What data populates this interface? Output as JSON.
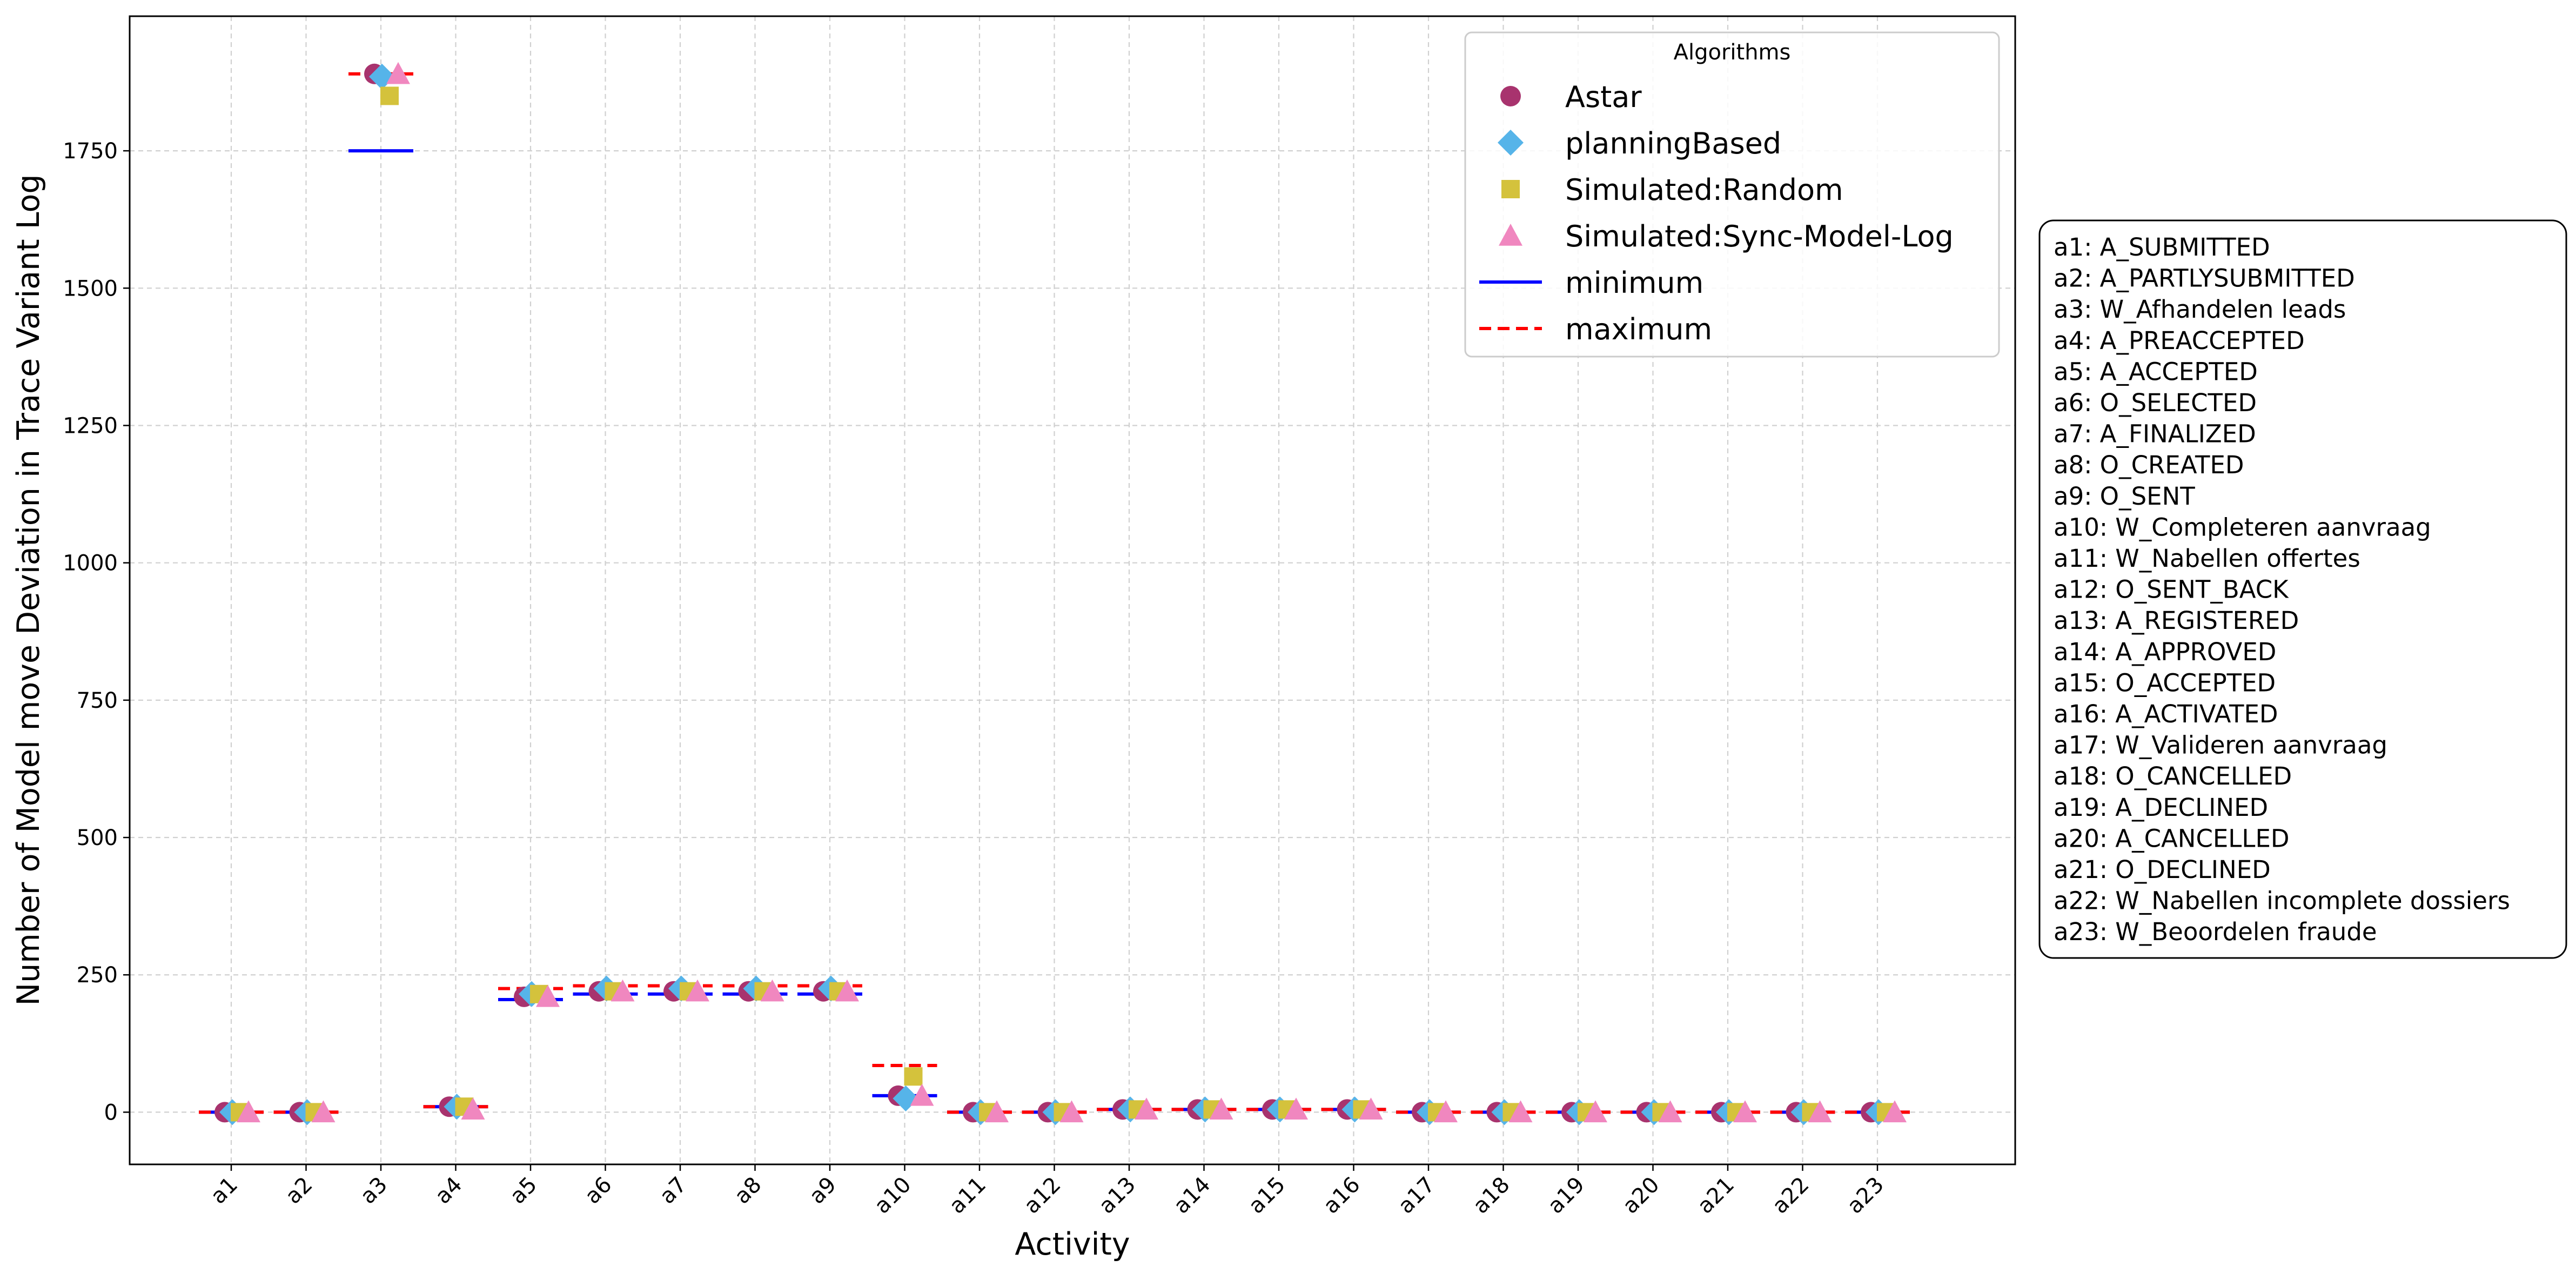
{
  "chart_data": {
    "type": "scatter",
    "xlabel": "Activity",
    "ylabel": "Number of Model move Deviation  in Trace Variant Log",
    "ylim": [
      -95,
      1995
    ],
    "yticks": [
      0,
      250,
      500,
      750,
      1000,
      1250,
      1500,
      1750
    ],
    "grid": true,
    "categories": [
      "a1",
      "a2",
      "a3",
      "a4",
      "a5",
      "a6",
      "a7",
      "a8",
      "a9",
      "a10",
      "a11",
      "a12",
      "a13",
      "a14",
      "a15",
      "a16",
      "a17",
      "a18",
      "a19",
      "a20",
      "a21",
      "a22",
      "a23"
    ],
    "legend": {
      "title": "Algorithms",
      "placement": "top-right",
      "entries": [
        "Astar",
        "planningBased",
        "Simulated:Random",
        "Simulated:Sync-Model-Log",
        "minimum",
        "maximum"
      ]
    },
    "series": [
      {
        "name": "Astar",
        "marker": "circle",
        "color": "#a8336e",
        "values": [
          0,
          0,
          1890,
          10,
          210,
          220,
          220,
          220,
          220,
          30,
          0,
          0,
          5,
          5,
          5,
          5,
          0,
          0,
          0,
          0,
          0,
          0,
          0
        ]
      },
      {
        "name": "planningBased",
        "marker": "diamond",
        "color": "#56b4e9",
        "values": [
          0,
          0,
          1885,
          10,
          215,
          225,
          225,
          225,
          225,
          25,
          0,
          0,
          5,
          5,
          5,
          5,
          0,
          0,
          0,
          0,
          0,
          0,
          0
        ]
      },
      {
        "name": "Simulated:Random",
        "marker": "square",
        "color": "#d4c23c",
        "values": [
          0,
          0,
          1850,
          10,
          215,
          220,
          220,
          220,
          220,
          65,
          0,
          0,
          5,
          5,
          5,
          5,
          0,
          0,
          0,
          0,
          0,
          0,
          0
        ]
      },
      {
        "name": "Simulated:Sync-Model-Log",
        "marker": "triangle",
        "color": "#f087bf",
        "values": [
          0,
          0,
          1890,
          5,
          210,
          220,
          220,
          220,
          220,
          30,
          0,
          0,
          5,
          5,
          5,
          5,
          0,
          0,
          0,
          0,
          0,
          0,
          0
        ]
      }
    ],
    "reference_lines": [
      {
        "name": "minimum",
        "style": "solid",
        "color": "#0000ff",
        "values": [
          0,
          0,
          1750,
          10,
          205,
          215,
          215,
          215,
          215,
          30,
          0,
          0,
          5,
          5,
          5,
          5,
          0,
          0,
          0,
          0,
          0,
          0,
          0
        ]
      },
      {
        "name": "maximum",
        "style": "dashed",
        "color": "#ff0000",
        "values": [
          0,
          0,
          1890,
          10,
          225,
          230,
          230,
          230,
          230,
          85,
          0,
          0,
          5,
          5,
          5,
          5,
          0,
          0,
          0,
          0,
          0,
          0,
          0
        ]
      }
    ],
    "activity_key": [
      "a1: A_SUBMITTED",
      "a2: A_PARTLYSUBMITTED",
      "a3: W_Afhandelen leads",
      "a4: A_PREACCEPTED",
      "a5: A_ACCEPTED",
      "a6: O_SELECTED",
      "a7: A_FINALIZED",
      "a8: O_CREATED",
      "a9: O_SENT",
      "a10: W_Completeren aanvraag",
      "a11: W_Nabellen offertes",
      "a12: O_SENT_BACK",
      "a13: A_REGISTERED",
      "a14: A_APPROVED",
      "a15: O_ACCEPTED",
      "a16: A_ACTIVATED",
      "a17: W_Valideren aanvraag",
      "a18: O_CANCELLED",
      "a19: A_DECLINED",
      "a20: A_CANCELLED",
      "a21: O_DECLINED",
      "a22: W_Nabellen incomplete dossiers",
      "a23: W_Beoordelen fraude"
    ]
  }
}
